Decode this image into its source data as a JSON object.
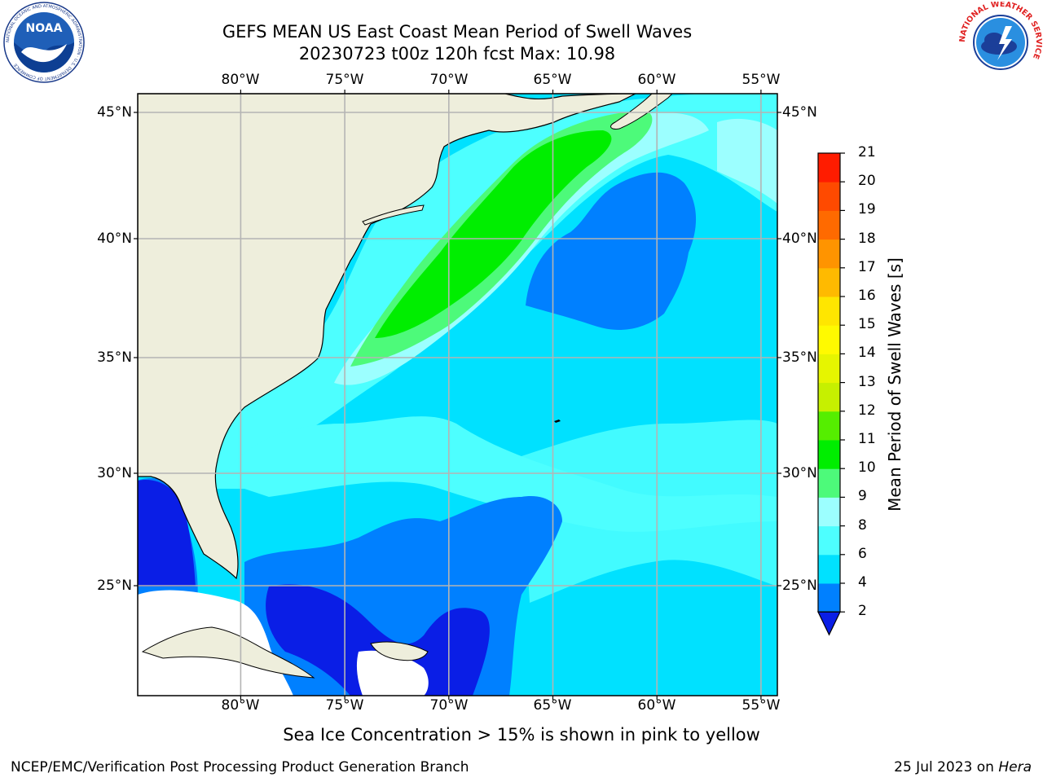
{
  "header": {
    "title_line1": "GEFS MEAN US East Coast Mean Period of Swell Waves",
    "title_line2": "20230723 t00z 120h fcst   Max: 10.98"
  },
  "logos": {
    "left": {
      "name": "noaa-logo",
      "text": "NOAA",
      "ring_text": "NATIONAL OCEANIC AND ATMOSPHERIC ADMINISTRATION · U.S. DEPARTMENT OF COMMERCE"
    },
    "right": {
      "name": "nws-logo",
      "ring_text": "NATIONAL WEATHER SERVICE"
    }
  },
  "map": {
    "lon_ticks": [
      "80°W",
      "75°W",
      "70°W",
      "65°W",
      "60°W",
      "55°W"
    ],
    "lat_ticks_left": [
      "45°N",
      "40°N",
      "35°N",
      "30°N",
      "25°N"
    ],
    "lat_ticks_right": [
      "45°N",
      "40°N",
      "35°N",
      "30°N",
      "25°N"
    ],
    "lon_range": [
      -85,
      -54.3
    ],
    "lat_range": [
      20.5,
      45.8
    ],
    "gridlines": true,
    "colors": {
      "land": "#eeeedc",
      "coast": "#000000",
      "grid": "#b4b4b4",
      "ice_free_white": "#ffffff"
    }
  },
  "colorbar": {
    "label": "Mean Period of Swell Waves [s]",
    "tick_labels": [
      "2",
      "4",
      "6",
      "8",
      "9",
      "10",
      "11",
      "12",
      "13",
      "14",
      "15",
      "16",
      "17",
      "18",
      "19",
      "20",
      "21"
    ],
    "extend": "min",
    "segments": [
      {
        "from": 2,
        "to": 4,
        "color": "#0080ff"
      },
      {
        "from": 4,
        "to": 6,
        "color": "#00e1ff"
      },
      {
        "from": 6,
        "to": 8,
        "color": "#4dffff"
      },
      {
        "from": 8,
        "to": 9,
        "color": "#9cffff"
      },
      {
        "from": 9,
        "to": 10,
        "color": "#4dfa7a"
      },
      {
        "from": 10,
        "to": 11,
        "color": "#00ee00"
      },
      {
        "from": 11,
        "to": 12,
        "color": "#55ee00"
      },
      {
        "from": 12,
        "to": 13,
        "color": "#c6f000"
      },
      {
        "from": 13,
        "to": 14,
        "color": "#e6f500"
      },
      {
        "from": 14,
        "to": 15,
        "color": "#fffa00"
      },
      {
        "from": 15,
        "to": 16,
        "color": "#ffe600"
      },
      {
        "from": 16,
        "to": 17,
        "color": "#ffba00"
      },
      {
        "from": 17,
        "to": 18,
        "color": "#ff9400"
      },
      {
        "from": 18,
        "to": 19,
        "color": "#ff6a00"
      },
      {
        "from": 19,
        "to": 20,
        "color": "#ff4a00"
      },
      {
        "from": 20,
        "to": 21,
        "color": "#ff1c00"
      }
    ],
    "under_color": "#0a1ee6"
  },
  "footer": {
    "note": "Sea Ice Concentration > 15% is shown in pink to yellow",
    "credit_left": "NCEP/EMC/Verification Post Processing Product Generation Branch",
    "credit_right_prefix": "25 Jul 2023 on ",
    "credit_right_host": "Hera"
  }
}
